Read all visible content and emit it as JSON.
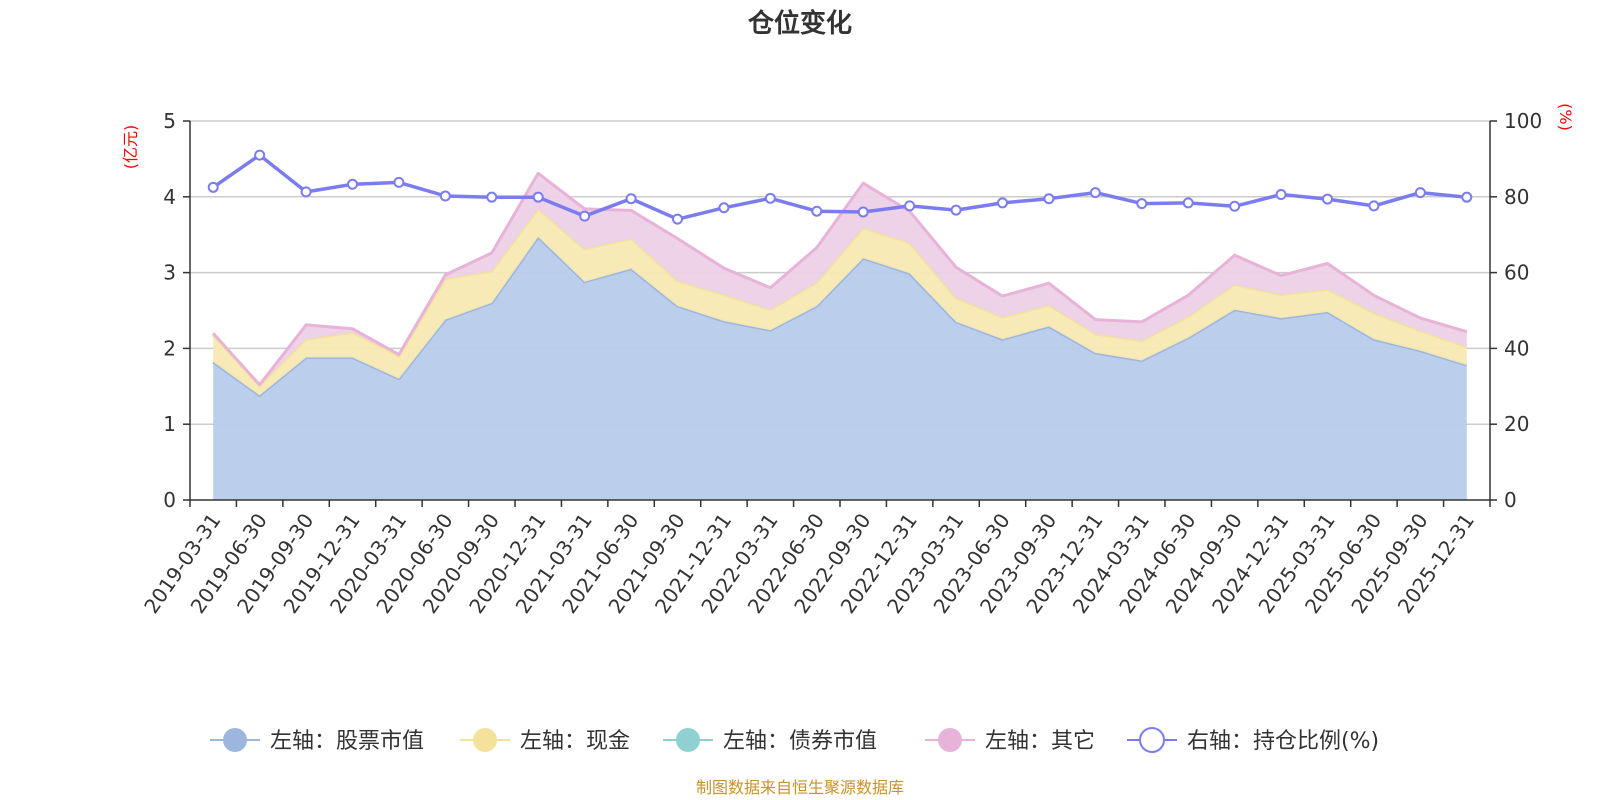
{
  "chart_data": {
    "type": "area",
    "title": "仓位变化",
    "left_axis": {
      "name": "(亿元)",
      "min": 0,
      "max": 5,
      "ticks": [
        0,
        1,
        2,
        3,
        4,
        5
      ]
    },
    "right_axis": {
      "name": "(%)",
      "min": 0,
      "max": 100,
      "ticks": [
        0,
        20,
        40,
        60,
        80,
        100
      ]
    },
    "categories": [
      "2019-03-31",
      "2019-06-30",
      "2019-09-30",
      "2019-12-31",
      "2020-03-31",
      "2020-06-30",
      "2020-09-30",
      "2020-12-31",
      "2021-03-31",
      "2021-06-30",
      "2021-09-30",
      "2021-12-31",
      "2022-03-31",
      "2022-06-30",
      "2022-09-30",
      "2022-12-31",
      "2023-03-31",
      "2023-06-30",
      "2023-09-30",
      "2023-12-31",
      "2024-03-31",
      "2024-06-30",
      "2024-09-30",
      "2024-12-31",
      "2025-03-31",
      "2025-06-30",
      "2025-09-30",
      "2025-12-31"
    ],
    "series": [
      {
        "name": "左轴：股票市值",
        "axis": "left",
        "stacked": true,
        "color": "#9db6e0",
        "fill": "#b7cbea",
        "values": [
          1.82,
          1.38,
          1.88,
          1.88,
          1.6,
          2.38,
          2.6,
          3.47,
          2.88,
          3.05,
          2.56,
          2.36,
          2.24,
          2.56,
          3.19,
          2.99,
          2.35,
          2.12,
          2.29,
          1.94,
          1.84,
          2.14,
          2.51,
          2.4,
          2.48,
          2.12,
          1.97,
          1.78
        ]
      },
      {
        "name": "左轴：现金",
        "axis": "left",
        "stacked": true,
        "color": "#f5e29a",
        "fill": "#f8e9b2",
        "values": [
          0.36,
          0.13,
          0.24,
          0.33,
          0.3,
          0.54,
          0.42,
          0.37,
          0.43,
          0.4,
          0.33,
          0.35,
          0.27,
          0.31,
          0.4,
          0.4,
          0.32,
          0.29,
          0.28,
          0.25,
          0.26,
          0.28,
          0.33,
          0.31,
          0.3,
          0.35,
          0.26,
          0.24
        ]
      },
      {
        "name": "左轴：债券市值",
        "axis": "left",
        "stacked": true,
        "color": "#8fd1d1",
        "fill": "#a6dcdc",
        "values": [
          0,
          0,
          0,
          0,
          0,
          0,
          0,
          0,
          0,
          0,
          0,
          0,
          0,
          0,
          0,
          0,
          0,
          0,
          0,
          0,
          0,
          0,
          0,
          0,
          0,
          0,
          0,
          0
        ]
      },
      {
        "name": "左轴：其它",
        "axis": "left",
        "stacked": true,
        "color": "#e7b3d8",
        "fill": "#edd0e7",
        "values": [
          0.02,
          0.01,
          0.19,
          0.05,
          0.02,
          0.05,
          0.24,
          0.47,
          0.53,
          0.37,
          0.56,
          0.35,
          0.29,
          0.46,
          0.59,
          0.42,
          0.4,
          0.28,
          0.29,
          0.19,
          0.25,
          0.28,
          0.39,
          0.25,
          0.34,
          0.23,
          0.17,
          0.2
        ]
      },
      {
        "name": "右轴：持仓比例(%)",
        "axis": "right",
        "stacked": false,
        "color": "#7b7cf0",
        "values": [
          82.5,
          91.0,
          81.3,
          83.3,
          83.8,
          80.2,
          79.9,
          79.9,
          74.9,
          79.5,
          74.1,
          77.1,
          79.6,
          76.2,
          76.0,
          77.6,
          76.5,
          78.4,
          79.5,
          81.1,
          78.2,
          78.4,
          77.5,
          80.6,
          79.4,
          77.6,
          81.1,
          79.9
        ]
      }
    ],
    "legend": [
      "左轴：股票市值",
      "左轴：现金",
      "左轴：债券市值",
      "左轴：其它",
      "右轴：持仓比例(%)"
    ],
    "legend_position": "bottom-center",
    "grid": true
  },
  "footer": {
    "source": "制图数据来自恒生聚源数据库"
  }
}
